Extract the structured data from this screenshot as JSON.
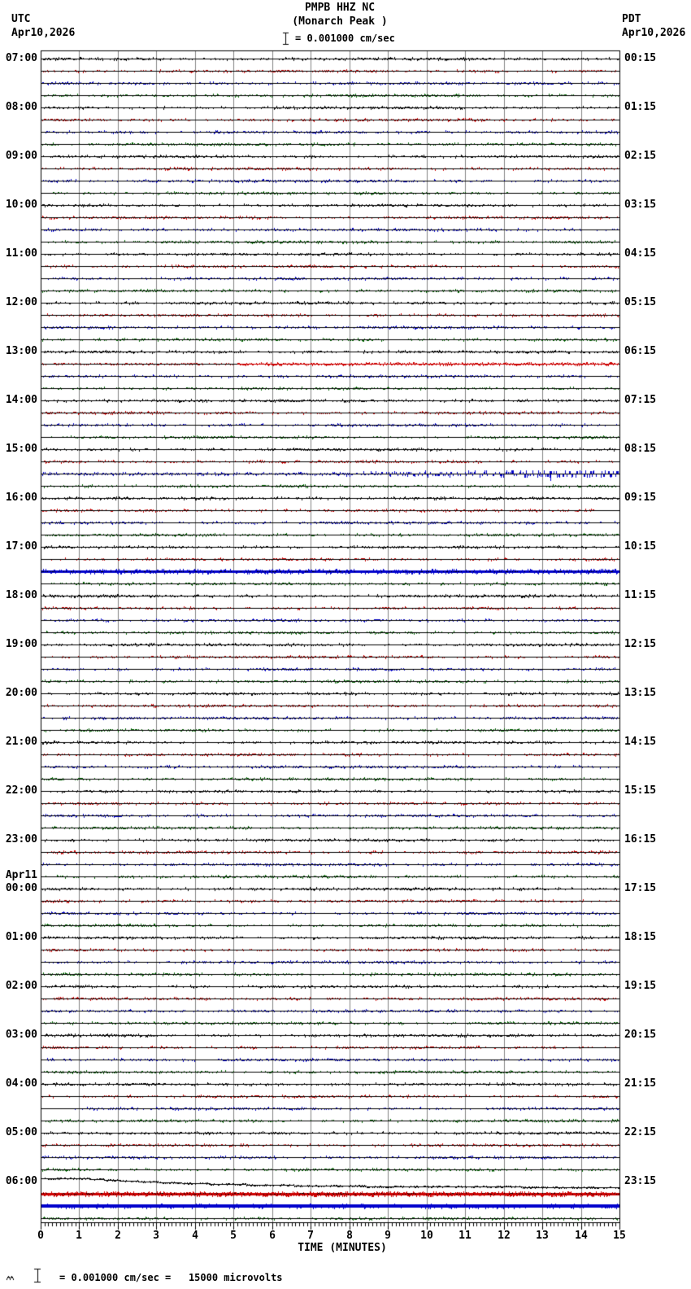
{
  "header": {
    "station_line": "PMPB HHZ NC",
    "location_line": "(Monarch Peak )",
    "scale_text": "= 0.001000 cm/sec"
  },
  "top_left": {
    "zone": "UTC",
    "date": "Apr10,2026"
  },
  "top_right": {
    "zone": "PDT",
    "date": "Apr10,2026"
  },
  "footer": {
    "note": "= 0.001000 cm/sec =   15000 microvolts"
  },
  "colors": {
    "trace_cycle": [
      "#000000",
      "#cc0000",
      "#0000cc",
      "#006600"
    ],
    "grid_line": "#848484",
    "border": "#000000",
    "background": "#ffffff"
  },
  "chart_data": {
    "type": "line",
    "subtype": "helicorder-seismogram",
    "title": "PMPB HHZ NC",
    "subtitle": "(Monarch Peak )",
    "amplitude_scale": "1 bar = 0.001000 cm/sec",
    "voltage_scale": "0.001000 cm/sec = 15000 microvolts",
    "traces_per_row": 4,
    "minutes_per_trace": 15,
    "trace_color_order": [
      "black",
      "red",
      "blue",
      "green"
    ],
    "x": {
      "label": "TIME (MINUTES)",
      "min": 0,
      "max": 15,
      "major_tick": 1,
      "minor_tick": 0.1,
      "ticks": [
        "0",
        "1",
        "2",
        "3",
        "4",
        "5",
        "6",
        "7",
        "8",
        "9",
        "10",
        "11",
        "12",
        "13",
        "14",
        "15"
      ]
    },
    "rows": [
      {
        "utc": "07:00",
        "pdt": "00:15"
      },
      {
        "utc": "08:00",
        "pdt": "01:15"
      },
      {
        "utc": "09:00",
        "pdt": "02:15"
      },
      {
        "utc": "10:00",
        "pdt": "03:15"
      },
      {
        "utc": "11:00",
        "pdt": "04:15"
      },
      {
        "utc": "12:00",
        "pdt": "05:15"
      },
      {
        "utc": "13:00",
        "pdt": "06:15"
      },
      {
        "utc": "14:00",
        "pdt": "07:15"
      },
      {
        "utc": "15:00",
        "pdt": "08:15"
      },
      {
        "utc": "16:00",
        "pdt": "09:15"
      },
      {
        "utc": "17:00",
        "pdt": "10:15"
      },
      {
        "utc": "18:00",
        "pdt": "11:15"
      },
      {
        "utc": "19:00",
        "pdt": "12:15"
      },
      {
        "utc": "20:00",
        "pdt": "13:15"
      },
      {
        "utc": "21:00",
        "pdt": "14:15"
      },
      {
        "utc": "22:00",
        "pdt": "15:15"
      },
      {
        "utc": "23:00",
        "pdt": "16:15"
      },
      {
        "utc": "00:00",
        "pdt": "17:15",
        "date_label": "Apr11"
      },
      {
        "utc": "01:00",
        "pdt": "18:15"
      },
      {
        "utc": "02:00",
        "pdt": "19:15"
      },
      {
        "utc": "03:00",
        "pdt": "20:15"
      },
      {
        "utc": "04:00",
        "pdt": "21:15"
      },
      {
        "utc": "05:00",
        "pdt": "22:15"
      },
      {
        "utc": "06:00",
        "pdt": "23:15"
      }
    ],
    "notable_events": [
      {
        "trace_index": 25,
        "utc_window": "13:15-13:30",
        "effect": "dense_second_half",
        "description": "continuous elevated red signal over second half of trace"
      },
      {
        "trace_index": 34,
        "utc_window": "15:30-15:45",
        "effect": "ramp_with_spike",
        "description": "amplitude ramps up in second half with downward spike near minute 13"
      },
      {
        "trace_index": 42,
        "utc_window": "17:30-17:45",
        "effect": "saturated_band",
        "description": "thick saturated blue trace across full width"
      },
      {
        "trace_index": 92,
        "utc_window": "06:00-06:15 Apr11",
        "effect": "step_decay",
        "description": "black trace starts offset high and decays below baseline"
      },
      {
        "trace_index": 93,
        "utc_window": "06:15-06:30 Apr11",
        "effect": "saturated_band_noisy",
        "description": "thick saturated noisy red trace across full width"
      },
      {
        "trace_index": 94,
        "utc_window": "06:30-06:45 Apr11",
        "effect": "solid_band",
        "description": "thick solid blue trace across full width"
      }
    ]
  },
  "plot_effects": {
    "special_traces": {
      "25": "dense_second_half",
      "34": "ramp_with_spike",
      "42": "saturated_band",
      "92": "step_decay",
      "93": "saturated_band_noisy",
      "94": "solid_band"
    }
  }
}
